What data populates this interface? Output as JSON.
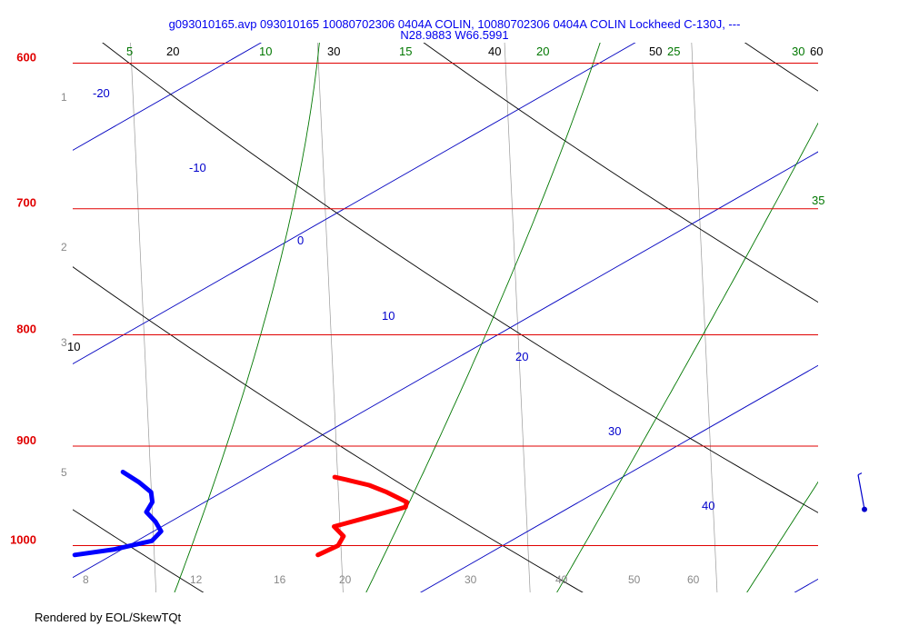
{
  "chart_data": {
    "type": "line",
    "title_line1": "g093010165.avp 093010165 10080702306 0404A COLIN, 10080702306 0404A COLIN Lockheed C-130J, ---",
    "title_line2": "N28.9883 W66.5991",
    "pressure_levels": [
      {
        "label": "600",
        "p": 600
      },
      {
        "label": "700",
        "p": 700
      },
      {
        "label": "800",
        "p": 800
      },
      {
        "label": "900",
        "p": 900
      },
      {
        "label": "1000",
        "p": 1000
      }
    ],
    "isotherms": [
      {
        "label": "-20",
        "t": -20
      },
      {
        "label": "-10",
        "t": -10
      },
      {
        "label": "0",
        "t": 0
      },
      {
        "label": "10",
        "t": 10
      },
      {
        "label": "20",
        "t": 20
      },
      {
        "label": "30",
        "t": 30
      },
      {
        "label": "40",
        "t": 40
      }
    ],
    "dry_adiabat_labels": [
      {
        "label": "10",
        "theta": 10
      },
      {
        "label": "20",
        "theta": 20
      },
      {
        "label": "30",
        "theta": 30
      },
      {
        "label": "40",
        "theta": 40
      },
      {
        "label": "50",
        "theta": 50
      },
      {
        "label": "60",
        "theta": 60
      }
    ],
    "moist_adiabat_labels": [
      {
        "label": "5",
        "v": 5
      },
      {
        "label": "10",
        "v": 10
      },
      {
        "label": "15",
        "v": 15
      },
      {
        "label": "20",
        "v": 20
      },
      {
        "label": "25",
        "v": 25
      },
      {
        "label": "30",
        "v": 30
      },
      {
        "label": "35",
        "v": 35
      }
    ],
    "mixing_ratio_labels": [
      {
        "label": "8",
        "w": 8
      },
      {
        "label": "12",
        "w": 12
      },
      {
        "label": "16",
        "w": 16
      },
      {
        "label": "20",
        "w": 20
      },
      {
        "label": "30",
        "w": 30
      },
      {
        "label": "40",
        "w": 40
      },
      {
        "label": "50",
        "w": 50
      },
      {
        "label": "60",
        "w": 60
      }
    ],
    "altitude_labels": [
      {
        "label": "1",
        "km": 1
      },
      {
        "label": "2",
        "km": 2
      },
      {
        "label": "3",
        "km": 3
      },
      {
        "label": "5",
        "km": 5
      }
    ],
    "series": [
      {
        "color": "#ff0000",
        "points": [
          {
            "p": 1010,
            "t": 25.5
          },
          {
            "p": 1000,
            "t": 25.6
          },
          {
            "p": 990,
            "t": 25.3
          },
          {
            "p": 980,
            "t": 24.6
          },
          {
            "p": 970,
            "t": 25.1
          },
          {
            "p": 960,
            "t": 25.6
          },
          {
            "p": 955,
            "t": 25.4
          },
          {
            "p": 945,
            "t": 24.4
          },
          {
            "p": 938,
            "t": 23.6
          },
          {
            "p": 933,
            "t": 22.8
          },
          {
            "p": 930,
            "t": 22.3
          }
        ]
      },
      {
        "color": "#0000ff",
        "points": [
          {
            "p": 1010,
            "t": 19.0
          },
          {
            "p": 1004,
            "t": 19.8
          },
          {
            "p": 995,
            "t": 20.4
          },
          {
            "p": 985,
            "t": 20.2
          },
          {
            "p": 975,
            "t": 19.6
          },
          {
            "p": 965,
            "t": 18.9
          },
          {
            "p": 955,
            "t": 18.6
          },
          {
            "p": 945,
            "t": 18.1
          },
          {
            "p": 935,
            "t": 17.3
          },
          {
            "p": 925,
            "t": 16.4
          }
        ]
      }
    ],
    "wind_barb": {
      "p": 935,
      "speed_kt": 5,
      "direction_deg": 355
    },
    "footer": "Rendered by EOL/SkewTQt"
  }
}
